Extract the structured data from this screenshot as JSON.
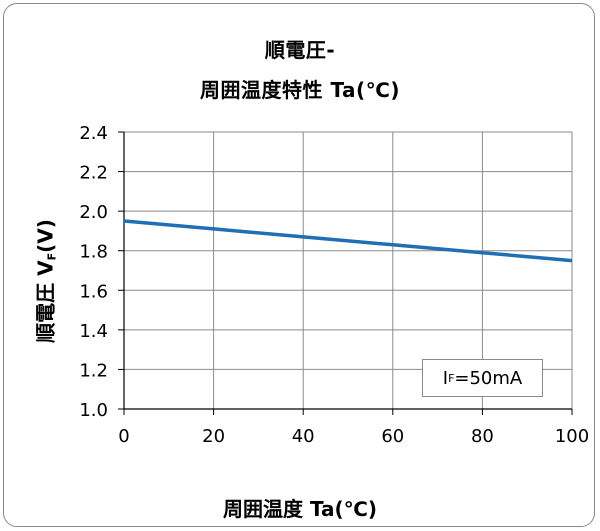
{
  "chart_data": {
    "type": "line",
    "title_line1": "順電圧-",
    "title_line2": "周囲温度特性 Ta(℃)",
    "xlabel": "周囲温度 Ta(℃)",
    "ylabel_main": "順電圧 V",
    "ylabel_sub": "F",
    "ylabel_unit": "(V)",
    "xlim": [
      0,
      100
    ],
    "ylim": [
      1.0,
      2.4
    ],
    "xticks": [
      "0",
      "20",
      "40",
      "60",
      "80",
      "100"
    ],
    "yticks": [
      "1.0",
      "1.2",
      "1.4",
      "1.6",
      "1.8",
      "2.0",
      "2.2",
      "2.4"
    ],
    "grid": true,
    "series": [
      {
        "color": "#1f6fb4",
        "x": [
          0,
          20,
          40,
          60,
          80,
          100
        ],
        "y": [
          1.95,
          1.91,
          1.87,
          1.83,
          1.79,
          1.75
        ]
      }
    ],
    "annotation": {
      "prefix": "I",
      "sub": "F",
      "suffix": "=50mA"
    }
  }
}
